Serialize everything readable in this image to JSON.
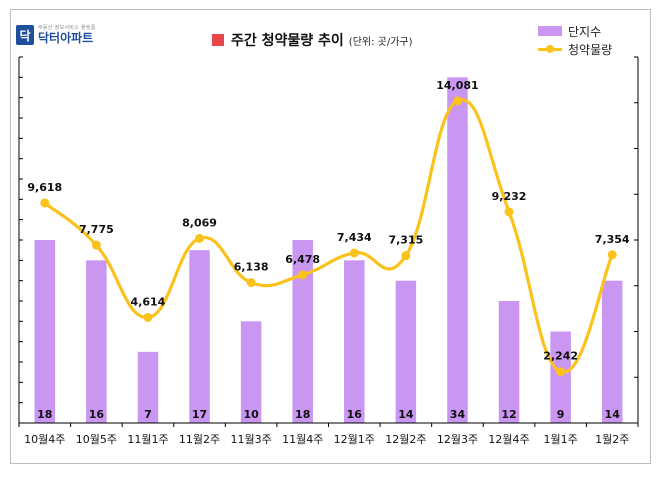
{
  "logo": {
    "mark": "닥",
    "sub": "부동산 정보서비스 플랫폼",
    "name": "닥터아파트"
  },
  "title": {
    "main": "주간 청약물량 추이",
    "unit": "(단위: 곳/가구)"
  },
  "legend": {
    "bars": "단지수",
    "line": "청약물량"
  },
  "colors": {
    "bar": "#c996f2",
    "line": "#fbc21c",
    "title_mark": "#e8474a",
    "logo": "#1f4e9c"
  },
  "chart_data": {
    "type": "bar",
    "categories": [
      "10월4주",
      "10월5주",
      "11월1주",
      "11월2주",
      "11월3주",
      "11월4주",
      "12월1주",
      "12월2주",
      "12월3주",
      "12월4주",
      "1월1주",
      "1월2주"
    ],
    "series": [
      {
        "name": "단지수",
        "type": "bar",
        "axis": "left",
        "values": [
          18,
          16,
          7,
          17,
          10,
          18,
          16,
          14,
          34,
          12,
          9,
          14
        ]
      },
      {
        "name": "청약물량",
        "type": "line",
        "axis": "right",
        "smooth": true,
        "values": [
          9618,
          7775,
          4614,
          8069,
          6138,
          6478,
          7434,
          7315,
          14081,
          9232,
          2242,
          7354
        ]
      }
    ],
    "bar_labels": [
      "18",
      "16",
      "7",
      "17",
      "10",
      "18",
      "16",
      "14",
      "34",
      "12",
      "9",
      "14"
    ],
    "line_labels": [
      "9,618",
      "7,775",
      "4,614",
      "8,069",
      "6,138",
      "6,478",
      "7,434",
      "7,315",
      "14,081",
      "9,232",
      "2,242",
      "7,354"
    ],
    "ylim_left": [
      0,
      36
    ],
    "ylim_right": [
      0,
      16000
    ],
    "grid": false,
    "legend_position": "top-right"
  }
}
